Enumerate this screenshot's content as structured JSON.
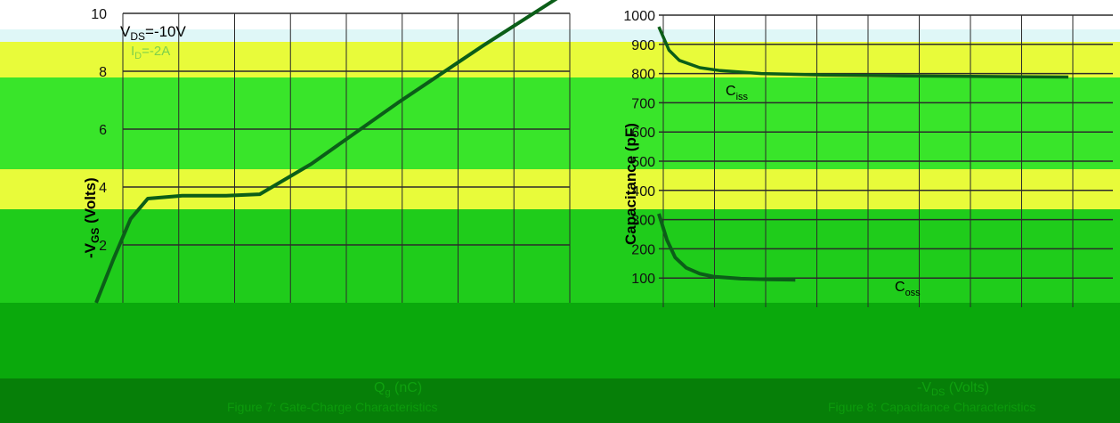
{
  "colors": {
    "background": "#ffffff",
    "band1": "#dff7f7",
    "band2": "#e8fb3a",
    "band3": "#39e52a",
    "band4": "#1fcc1b",
    "band5": "#0aa90c",
    "band6": "#067f08",
    "curve": "#0b5e18",
    "grid": "#2b2b2b",
    "text": "#111111",
    "label_light": "#7fff7f"
  },
  "chart_data": [
    {
      "type": "line",
      "xlabel_main": "Q",
      "xlabel_sub": "g",
      "xlabel_unit": "(nC)",
      "ylabel_prefix": "-V",
      "ylabel_sub": "GS",
      "ylabel_unit": "(Volts)",
      "yticks": [
        "2",
        "4",
        "6",
        "8",
        "10"
      ],
      "ylim": [
        0,
        10
      ],
      "annotation": {
        "vds_prefix": "V",
        "vds_sub": "DS",
        "vds_value": "=-10V",
        "id_prefix": "I",
        "id_sub": "D",
        "id_value": "=-2A"
      },
      "footer": "Figure 7: Gate-Charge Characteristics",
      "series": [
        {
          "values_x": [
            0,
            0.4,
            0.8,
            1.2,
            2.0,
            3.0,
            3.8,
            5.0,
            7.0,
            9.0,
            11.0
          ],
          "values_y": [
            0,
            1.5,
            2.9,
            3.6,
            3.7,
            3.7,
            3.75,
            4.8,
            6.9,
            8.9,
            10.8
          ]
        }
      ]
    },
    {
      "type": "line",
      "xlabel_main": "-V",
      "xlabel_sub": "DS",
      "xlabel_unit": "(Volts)",
      "ylabel": "Capacitance (pF)",
      "yticks": [
        "100",
        "200",
        "300",
        "400",
        "500",
        "600",
        "700",
        "800",
        "900",
        "1000"
      ],
      "ylim": [
        0,
        1000
      ],
      "footer": "Figure 8: Capacitance Characteristics",
      "series": [
        {
          "name": "C",
          "name_sub": "iss",
          "values_x": [
            0,
            0.5,
            1,
            2,
            3,
            5,
            8,
            12,
            16,
            20
          ],
          "values_y": [
            960,
            880,
            845,
            820,
            810,
            800,
            795,
            792,
            790,
            788
          ]
        },
        {
          "name": "C",
          "name_sub": "oss",
          "values_x": [
            0,
            0.3,
            0.6,
            1,
            1.5,
            2,
            3,
            4,
            5
          ],
          "values_y": [
            320,
            230,
            170,
            135,
            115,
            105,
            98,
            95,
            94
          ]
        }
      ]
    }
  ]
}
